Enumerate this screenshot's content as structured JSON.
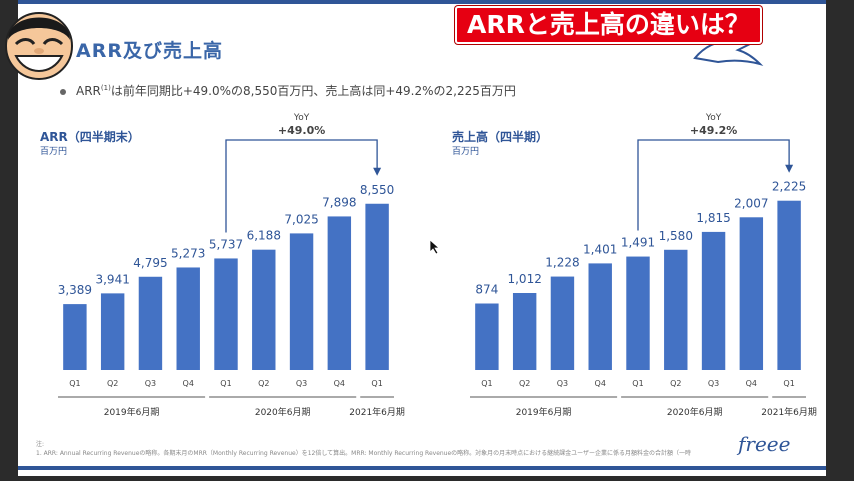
{
  "slide": {
    "title": "ARR及び売上高",
    "bullet": {
      "text_a": "ARR",
      "superscript": "(1)",
      "text_b": "は前年同期比+49.0%の8,550百万円、売上高は同+49.2%の2,225百万円"
    },
    "footnote_label": "注:",
    "footnote_text": "1.  ARR: Annual Recurring Revenueの略称。各期末月のMRR（Monthly Recurring Revenue）を12倍して算出。MRR: Monthly Recurring Revenueの略称。対象月の月末時点における継続課金ユーザー企業に係る月額料金の合計額（一時"
  },
  "overlay": {
    "caption": "ARRと売上高の違いは？",
    "brand": "freee",
    "caption_color": "#e60012"
  },
  "icons": {
    "avatar": "cartoon-face-icon",
    "logo": "bird-logo-icon",
    "cursor": "mouse-pointer-icon"
  },
  "chart_data": [
    {
      "type": "bar",
      "title": "ARR（四半期末）",
      "ylabel": "百万円",
      "categories": [
        "Q1",
        "Q2",
        "Q3",
        "Q4",
        "Q1",
        "Q2",
        "Q3",
        "Q4",
        "Q1"
      ],
      "values": [
        3389,
        3941,
        4795,
        5273,
        5737,
        6188,
        7025,
        7898,
        8550
      ],
      "value_labels": [
        "3,389",
        "3,941",
        "4,795",
        "5,273",
        "5,737",
        "6,188",
        "7,025",
        "7,898",
        "8,550"
      ],
      "groups": [
        {
          "label": "2019年6月期",
          "start": 0,
          "end": 3
        },
        {
          "label": "2020年6月期",
          "start": 4,
          "end": 7
        },
        {
          "label": "2021年6月期",
          "start": 8,
          "end": 8
        }
      ],
      "yoy": {
        "label": "YoY",
        "value": "+49.0%",
        "from": 4,
        "to": 8
      },
      "ylim": [
        0,
        9000
      ],
      "color": "#4472c4"
    },
    {
      "type": "bar",
      "title": "売上高（四半期）",
      "ylabel": "百万円",
      "categories": [
        "Q1",
        "Q2",
        "Q3",
        "Q4",
        "Q1",
        "Q2",
        "Q3",
        "Q4",
        "Q1"
      ],
      "values": [
        874,
        1012,
        1228,
        1401,
        1491,
        1580,
        1815,
        2007,
        2225
      ],
      "value_labels": [
        "874",
        "1,012",
        "1,228",
        "1,401",
        "1,491",
        "1,580",
        "1,815",
        "2,007",
        "2,225"
      ],
      "groups": [
        {
          "label": "2019年6月期",
          "start": 0,
          "end": 3
        },
        {
          "label": "2020年6月期",
          "start": 4,
          "end": 7
        },
        {
          "label": "2021年6月期",
          "start": 8,
          "end": 8
        }
      ],
      "yoy": {
        "label": "YoY",
        "value": "+49.2%",
        "from": 4,
        "to": 8
      },
      "ylim": [
        0,
        2300
      ],
      "color": "#4472c4"
    }
  ]
}
